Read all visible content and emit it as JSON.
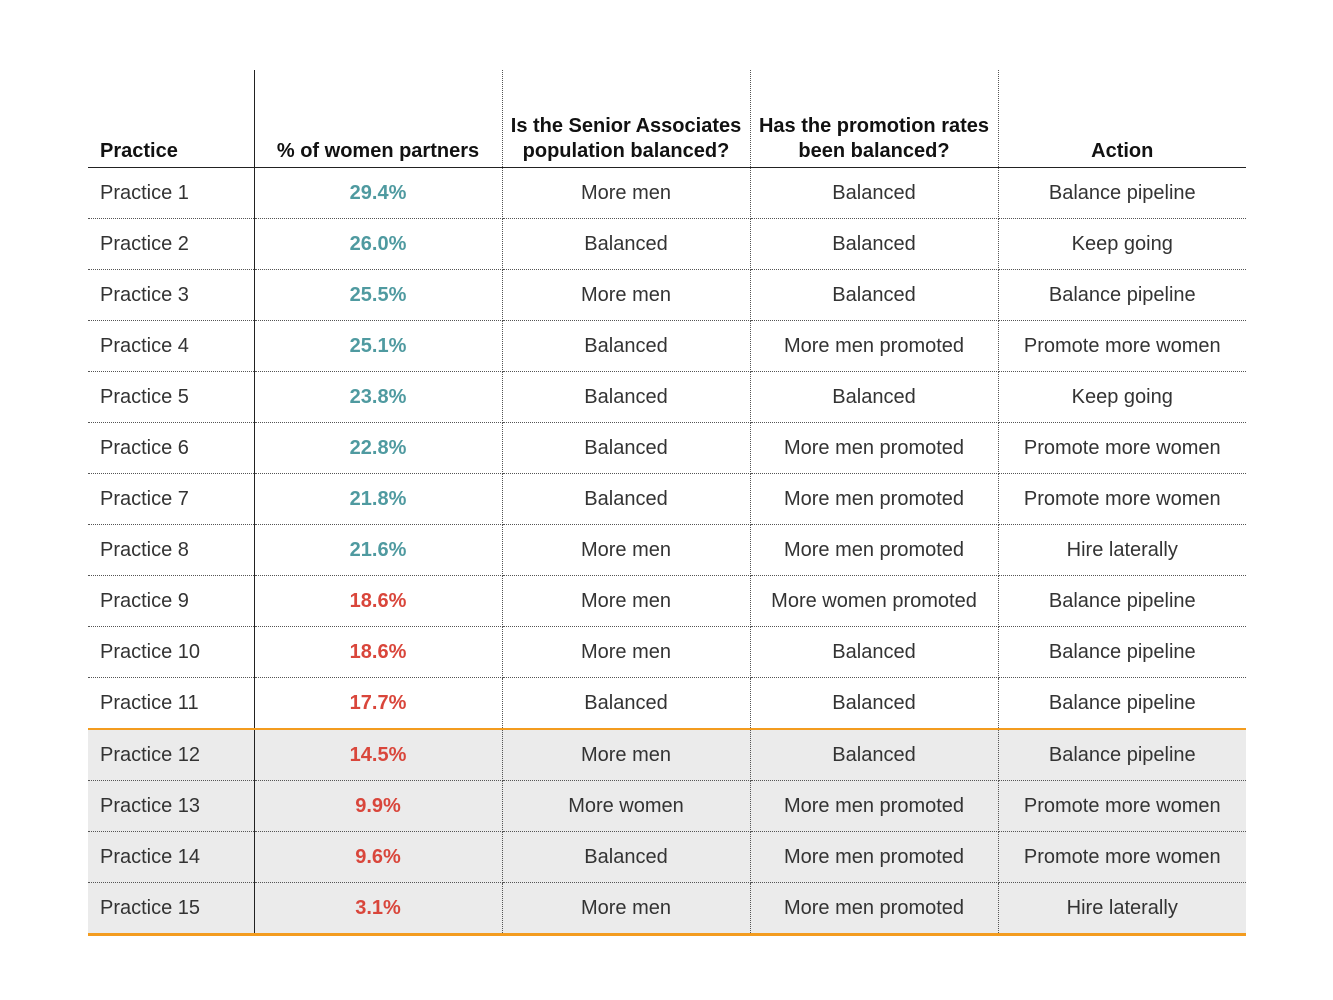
{
  "chart_data": {
    "type": "table",
    "columns": [
      "Practice",
      "% of women partners",
      "Is the Senior Associates population balanced?",
      "Has the promotion rates been balanced?",
      "Action"
    ],
    "rows": [
      {
        "practice": "Practice 1",
        "pct": "29.4%",
        "value": 29.4,
        "senior": "More men",
        "promotion": "Balanced",
        "action": "Balance pipeline",
        "band": "above"
      },
      {
        "practice": "Practice 2",
        "pct": "26.0%",
        "value": 26.0,
        "senior": "Balanced",
        "promotion": "Balanced",
        "action": "Keep going",
        "band": "above"
      },
      {
        "practice": "Practice 3",
        "pct": "25.5%",
        "value": 25.5,
        "senior": "More men",
        "promotion": "Balanced",
        "action": "Balance pipeline",
        "band": "above"
      },
      {
        "practice": "Practice 4",
        "pct": "25.1%",
        "value": 25.1,
        "senior": "Balanced",
        "promotion": "More men promoted",
        "action": "Promote more women",
        "band": "above"
      },
      {
        "practice": "Practice 5",
        "pct": "23.8%",
        "value": 23.8,
        "senior": "Balanced",
        "promotion": "Balanced",
        "action": "Keep going",
        "band": "above"
      },
      {
        "practice": "Practice 6",
        "pct": "22.8%",
        "value": 22.8,
        "senior": "Balanced",
        "promotion": "More men promoted",
        "action": "Promote more women",
        "band": "above"
      },
      {
        "practice": "Practice 7",
        "pct": "21.8%",
        "value": 21.8,
        "senior": "Balanced",
        "promotion": "More men promoted",
        "action": "Promote more women",
        "band": "above"
      },
      {
        "practice": "Practice 8",
        "pct": "21.6%",
        "value": 21.6,
        "senior": "More men",
        "promotion": "More men promoted",
        "action": "Hire laterally",
        "band": "above"
      },
      {
        "practice": "Practice 9",
        "pct": "18.6%",
        "value": 18.6,
        "senior": "More men",
        "promotion": "More women promoted",
        "action": "Balance pipeline",
        "band": "below"
      },
      {
        "practice": "Practice 10",
        "pct": "18.6%",
        "value": 18.6,
        "senior": "More men",
        "promotion": "Balanced",
        "action": "Balance pipeline",
        "band": "below"
      },
      {
        "practice": "Practice 11",
        "pct": "17.7%",
        "value": 17.7,
        "senior": "Balanced",
        "promotion": "Balanced",
        "action": "Balance pipeline",
        "band": "below"
      },
      {
        "practice": "Practice 12",
        "pct": "14.5%",
        "value": 14.5,
        "senior": "More men",
        "promotion": "Balanced",
        "action": "Balance pipeline",
        "band": "below",
        "highlight": true
      },
      {
        "practice": "Practice 13",
        "pct": "9.9%",
        "value": 9.9,
        "senior": "More women",
        "promotion": "More men promoted",
        "action": "Promote more women",
        "band": "below",
        "highlight": true
      },
      {
        "practice": "Practice 14",
        "pct": "9.6%",
        "value": 9.6,
        "senior": "Balanced",
        "promotion": "More men promoted",
        "action": "Promote more women",
        "band": "below",
        "highlight": true
      },
      {
        "practice": "Practice 15",
        "pct": "3.1%",
        "value": 3.1,
        "senior": "More men",
        "promotion": "More men promoted",
        "action": "Hire laterally",
        "band": "below",
        "highlight": true
      }
    ],
    "colors": {
      "above": "#4f9aa0",
      "below": "#d9463b",
      "highlight_bg": "#ebebeb",
      "highlight_border": "#f39c1f"
    }
  }
}
